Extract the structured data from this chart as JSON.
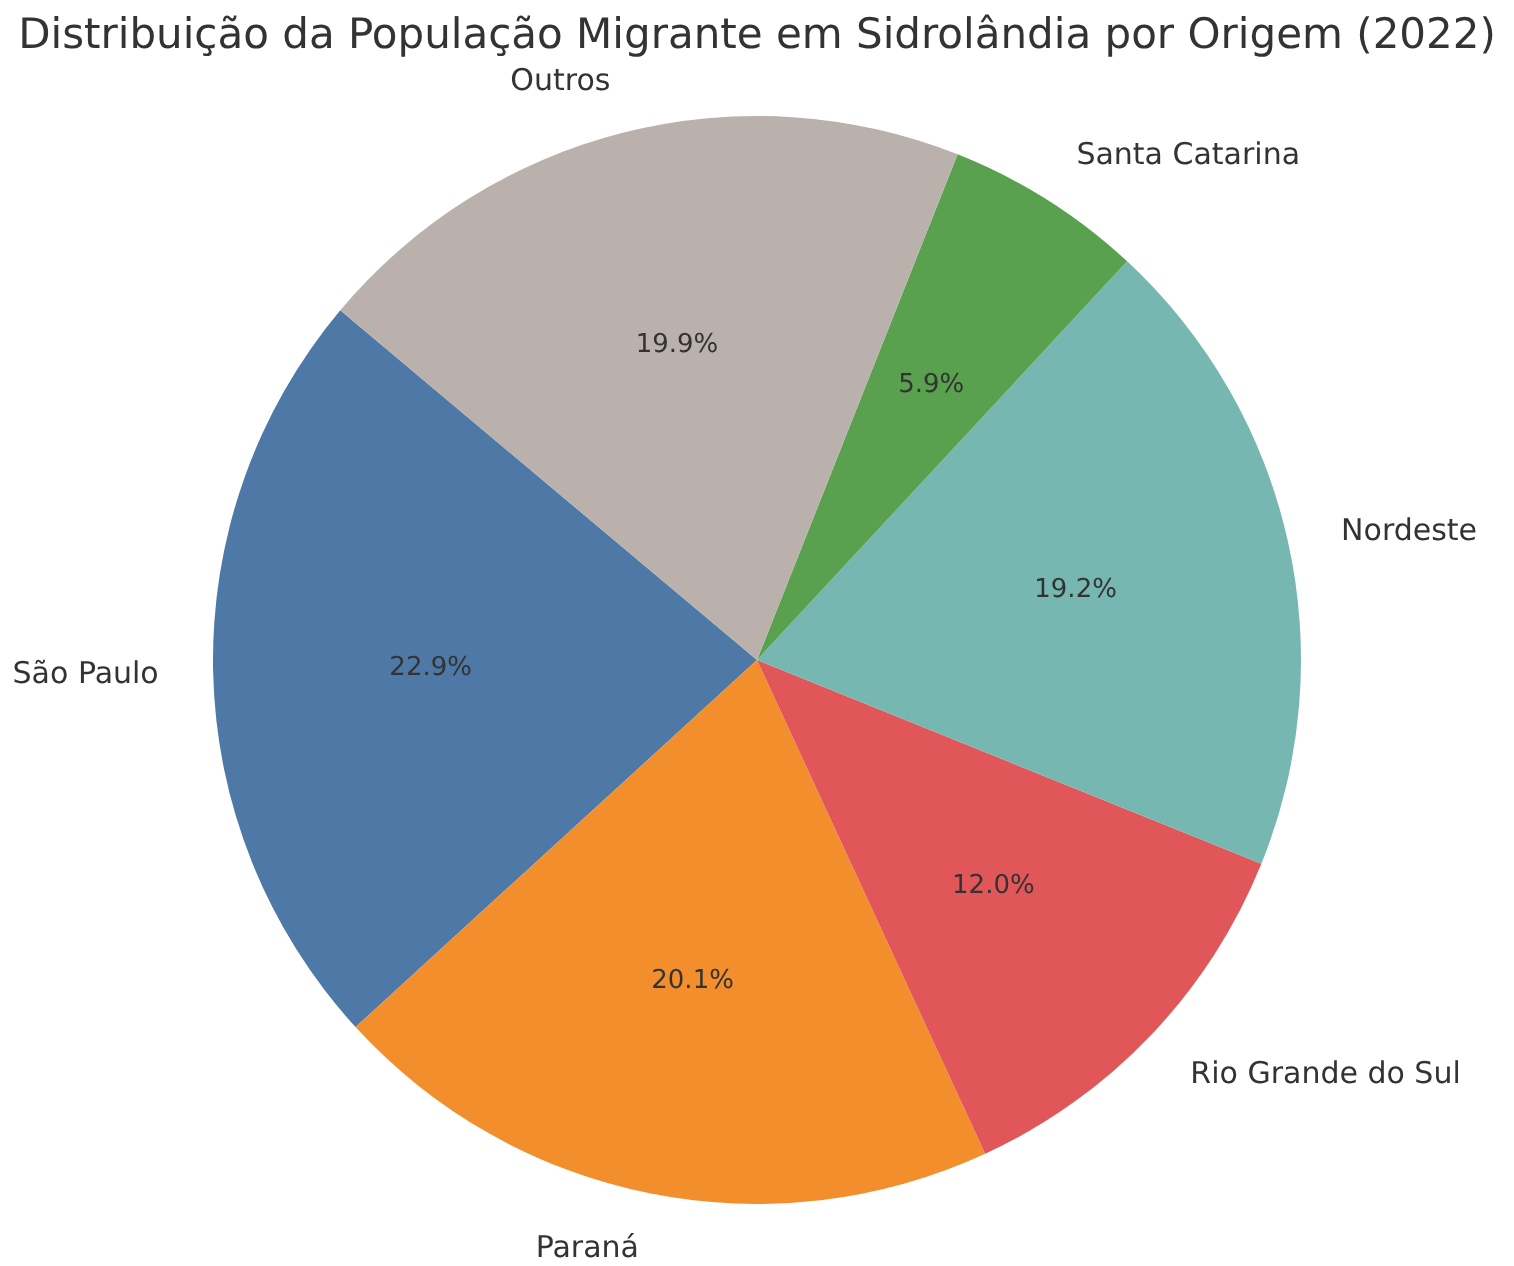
{
  "chart_data": {
    "type": "pie",
    "title": "Distribuição da População Migrante em Sidrolândia por Origem (2022)",
    "categories": [
      "São Paulo",
      "Paraná",
      "Rio Grande do Sul",
      "Nordeste",
      "Santa Catarina",
      "Outros"
    ],
    "values": [
      22.9,
      20.1,
      12.0,
      19.2,
      5.9,
      19.9
    ],
    "value_labels": [
      "22.9%",
      "20.1%",
      "12.0%",
      "19.2%",
      "5.9%",
      "19.9%"
    ],
    "colors": [
      "#4e79a7",
      "#f28e2b",
      "#e15759",
      "#76b7b2",
      "#59a14f",
      "#bab0ac"
    ],
    "legend": false
  }
}
